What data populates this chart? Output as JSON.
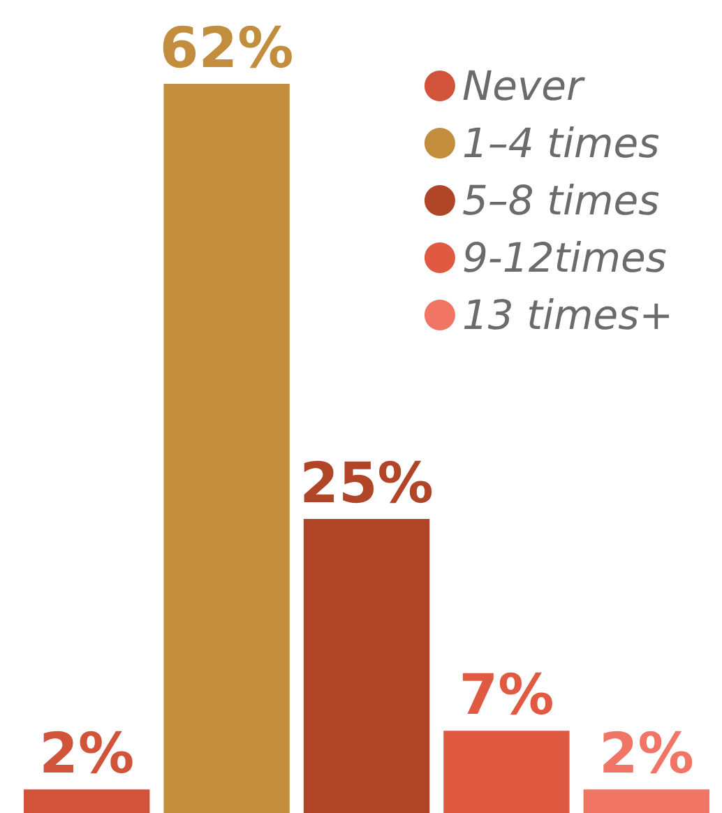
{
  "chart_data": {
    "type": "bar",
    "categories": [
      null,
      null,
      null,
      null,
      null
    ],
    "series": [
      {
        "name": "Never",
        "color": "#d0533a",
        "values": [
          2,
          null,
          null,
          null,
          null
        ],
        "value_labels": [
          "2%",
          null,
          null,
          null,
          null
        ]
      },
      {
        "name": "1–4 times",
        "color": "#c28e3d",
        "values": [
          null,
          62,
          null,
          null,
          null
        ],
        "value_labels": [
          null,
          "62%",
          null,
          null,
          null
        ]
      },
      {
        "name": "5–8 times",
        "color": "#b04528",
        "values": [
          null,
          null,
          25,
          null,
          null
        ],
        "value_labels": [
          null,
          null,
          "25%",
          null,
          null
        ]
      },
      {
        "name": "9-12times",
        "color": "#e05a42",
        "values": [
          null,
          null,
          null,
          7,
          null
        ],
        "value_labels": [
          null,
          null,
          null,
          "7%",
          null
        ]
      },
      {
        "name": "13 times+",
        "color": "#f07565",
        "values": [
          null,
          null,
          null,
          null,
          2
        ],
        "value_labels": [
          null,
          null,
          null,
          null,
          "2%"
        ]
      }
    ],
    "stacked": true,
    "tick_labels": false,
    "legend": "top right",
    "grid": false
  }
}
